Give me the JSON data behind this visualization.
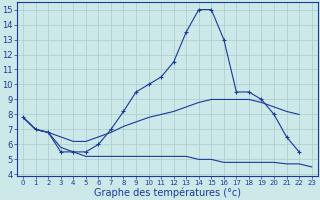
{
  "title": "Graphe des températures (°c)",
  "x_ticks": [
    0,
    1,
    2,
    3,
    4,
    5,
    6,
    7,
    8,
    9,
    10,
    11,
    12,
    13,
    14,
    15,
    16,
    17,
    18,
    19,
    20,
    21,
    22,
    23
  ],
  "ylim": [
    4,
    15
  ],
  "yticks": [
    4,
    5,
    6,
    7,
    8,
    9,
    10,
    11,
    12,
    13,
    14,
    15
  ],
  "background_color": "#cce8e8",
  "grid_color": "#aacccc",
  "line_color": "#1a3a9a",
  "series1_x": [
    0,
    1,
    2,
    3,
    4,
    5,
    6,
    7,
    8,
    9,
    10,
    11,
    12,
    13,
    14,
    15,
    16,
    17,
    18,
    19,
    20,
    21,
    22,
    23
  ],
  "series1_y": [
    7.8,
    7.0,
    6.8,
    5.5,
    5.5,
    5.5,
    6.0,
    7.0,
    8.2,
    9.5,
    10.0,
    10.5,
    11.5,
    13.5,
    15.0,
    15.0,
    13.0,
    9.5,
    9.5,
    9.0,
    8.0,
    6.5,
    5.5,
    null
  ],
  "series2_x": [
    0,
    1,
    2,
    3,
    4,
    5,
    6,
    7,
    8,
    9,
    10,
    11,
    12,
    13,
    14,
    15,
    16,
    17,
    18,
    19,
    20,
    21,
    22,
    23
  ],
  "series2_y": [
    7.8,
    7.0,
    6.8,
    6.5,
    6.2,
    6.2,
    6.5,
    6.8,
    7.2,
    7.5,
    7.8,
    8.0,
    8.2,
    8.5,
    8.8,
    9.0,
    9.0,
    9.0,
    9.0,
    8.8,
    8.5,
    8.2,
    8.0,
    null
  ],
  "series3_x": [
    0,
    1,
    2,
    3,
    4,
    5,
    6,
    7,
    8,
    9,
    10,
    11,
    12,
    13,
    14,
    15,
    16,
    17,
    18,
    19,
    20,
    21,
    22,
    23
  ],
  "series3_y": [
    7.8,
    7.0,
    6.8,
    5.8,
    5.5,
    5.2,
    5.2,
    5.2,
    5.2,
    5.2,
    5.2,
    5.2,
    5.2,
    5.2,
    5.0,
    5.0,
    4.8,
    4.8,
    4.8,
    4.8,
    4.8,
    4.7,
    4.7,
    4.5
  ],
  "figsize": [
    3.2,
    2.0
  ],
  "dpi": 100,
  "xlabel_fontsize": 7,
  "tick_fontsize_x": 5,
  "tick_fontsize_y": 6
}
